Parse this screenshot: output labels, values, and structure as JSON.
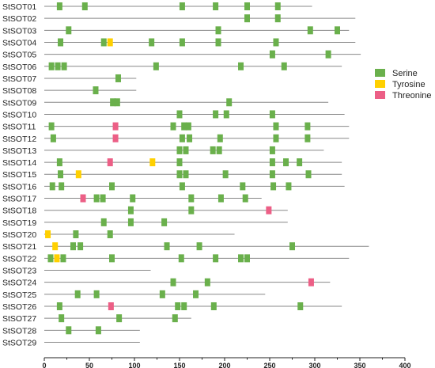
{
  "chart_data": {
    "type": "domain-map",
    "title": "",
    "xlabel": "",
    "ylabel": "",
    "xlim": [
      0,
      400
    ],
    "x_ticks": [
      0,
      50,
      100,
      150,
      200,
      250,
      300,
      350,
      400
    ],
    "grid": false,
    "legend_position": "right",
    "colors": {
      "backbone": "#888888",
      "Serine": "#6ab04c",
      "Tyrosine": "#ffd000",
      "Threonine": "#ec5f86"
    },
    "legend": [
      "Serine",
      "Tyrosine",
      "Threonine"
    ],
    "sequences": [
      {
        "name": "StSOT01",
        "length": 297,
        "sites": [
          {
            "type": "Serine",
            "pos": [
              17,
              45,
              153,
              190,
              225,
              259
            ]
          }
        ]
      },
      {
        "name": "StSOT02",
        "length": 345,
        "sites": [
          {
            "type": "Serine",
            "pos": [
              225,
              259
            ]
          }
        ]
      },
      {
        "name": "StSOT03",
        "length": 338,
        "sites": [
          {
            "type": "Serine",
            "pos": [
              27,
              193,
              295,
              325
            ]
          }
        ]
      },
      {
        "name": "StSOT04",
        "length": 345,
        "sites": [
          {
            "type": "Serine",
            "pos": [
              18,
              66,
              119,
              153,
              193,
              257
            ]
          },
          {
            "type": "Tyrosine",
            "pos": [
              73
            ]
          }
        ]
      },
      {
        "name": "StSOT05",
        "length": 351,
        "sites": [
          {
            "type": "Serine",
            "pos": [
              253,
              315
            ]
          }
        ]
      },
      {
        "name": "StSOT06",
        "length": 330,
        "sites": [
          {
            "type": "Serine",
            "pos": [
              8,
              15,
              22,
              124,
              218,
              266
            ]
          }
        ]
      },
      {
        "name": "StSOT07",
        "length": 102,
        "sites": [
          {
            "type": "Serine",
            "pos": [
              82
            ]
          }
        ]
      },
      {
        "name": "StSOT08",
        "length": 102,
        "sites": [
          {
            "type": "Serine",
            "pos": [
              57
            ]
          }
        ]
      },
      {
        "name": "StSOT09",
        "length": 315,
        "sites": [
          {
            "type": "Serine",
            "pos": [
              76,
              81,
              205
            ]
          }
        ]
      },
      {
        "name": "StSOT10",
        "length": 333,
        "sites": [
          {
            "type": "Serine",
            "pos": [
              150,
              190,
              202,
              253
            ]
          }
        ]
      },
      {
        "name": "StSOT11",
        "length": 338,
        "sites": [
          {
            "type": "Serine",
            "pos": [
              8,
              143,
              155,
              160,
              257,
              292
            ]
          },
          {
            "type": "Threonine",
            "pos": [
              79
            ]
          }
        ]
      },
      {
        "name": "StSOT12",
        "length": 338,
        "sites": [
          {
            "type": "Serine",
            "pos": [
              10,
              153,
              161,
              195,
              257,
              292
            ]
          },
          {
            "type": "Threonine",
            "pos": [
              79
            ]
          }
        ]
      },
      {
        "name": "StSOT13",
        "length": 310,
        "sites": [
          {
            "type": "Serine",
            "pos": [
              150,
              157,
              187,
              194,
              253
            ]
          }
        ]
      },
      {
        "name": "StSOT14",
        "length": 330,
        "sites": [
          {
            "type": "Serine",
            "pos": [
              17,
              150,
              253,
              268,
              283
            ]
          },
          {
            "type": "Threonine",
            "pos": [
              73
            ]
          },
          {
            "type": "Tyrosine",
            "pos": [
              120
            ]
          }
        ]
      },
      {
        "name": "StSOT15",
        "length": 330,
        "sites": [
          {
            "type": "Serine",
            "pos": [
              18,
              150,
              157,
              201,
              253,
              293
            ]
          },
          {
            "type": "Tyrosine",
            "pos": [
              38
            ]
          }
        ]
      },
      {
        "name": "StSOT16",
        "length": 333,
        "sites": [
          {
            "type": "Serine",
            "pos": [
              9,
              19,
              75,
              153,
              220,
              254,
              271
            ]
          }
        ]
      },
      {
        "name": "StSOT17",
        "length": 241,
        "sites": [
          {
            "type": "Serine",
            "pos": [
              58,
              65,
              98,
              163,
              196,
              223
            ]
          },
          {
            "type": "Threonine",
            "pos": [
              43
            ]
          }
        ]
      },
      {
        "name": "StSOT18",
        "length": 270,
        "sites": [
          {
            "type": "Serine",
            "pos": [
              96,
              163
            ]
          },
          {
            "type": "Threonine",
            "pos": [
              249
            ]
          }
        ]
      },
      {
        "name": "StSOT19",
        "length": 270,
        "sites": [
          {
            "type": "Serine",
            "pos": [
              66,
              96,
              133
            ]
          }
        ]
      },
      {
        "name": "StSOT20",
        "length": 211,
        "sites": [
          {
            "type": "Serine",
            "pos": [
              35,
              73
            ]
          },
          {
            "type": "Tyrosine",
            "pos": [
              4
            ]
          }
        ]
      },
      {
        "name": "StSOT21",
        "length": 360,
        "sites": [
          {
            "type": "Serine",
            "pos": [
              32,
              40,
              136,
              172,
              275
            ]
          },
          {
            "type": "Tyrosine",
            "pos": [
              12
            ]
          }
        ]
      },
      {
        "name": "StSOT22",
        "length": 338,
        "sites": [
          {
            "type": "Serine",
            "pos": [
              7,
              21,
              75,
              152,
              190,
              218,
              225
            ]
          },
          {
            "type": "Tyrosine",
            "pos": [
              14
            ]
          }
        ]
      },
      {
        "name": "StSOT23",
        "length": 118,
        "sites": []
      },
      {
        "name": "StSOT24",
        "length": 317,
        "sites": [
          {
            "type": "Serine",
            "pos": [
              143,
              181
            ]
          },
          {
            "type": "Threonine",
            "pos": [
              296
            ]
          }
        ]
      },
      {
        "name": "StSOT25",
        "length": 245,
        "sites": [
          {
            "type": "Serine",
            "pos": [
              37,
              58,
              131,
              168
            ]
          }
        ]
      },
      {
        "name": "StSOT26",
        "length": 330,
        "sites": [
          {
            "type": "Serine",
            "pos": [
              17,
              148,
              155,
              188,
              284
            ]
          },
          {
            "type": "Threonine",
            "pos": [
              74
            ]
          }
        ]
      },
      {
        "name": "StSOT27",
        "length": 163,
        "sites": [
          {
            "type": "Serine",
            "pos": [
              19,
              83,
              145
            ]
          }
        ]
      },
      {
        "name": "StSOT28",
        "length": 106,
        "sites": [
          {
            "type": "Serine",
            "pos": [
              27,
              60
            ]
          }
        ]
      },
      {
        "name": "StSOT29",
        "length": 106,
        "sites": []
      }
    ]
  }
}
